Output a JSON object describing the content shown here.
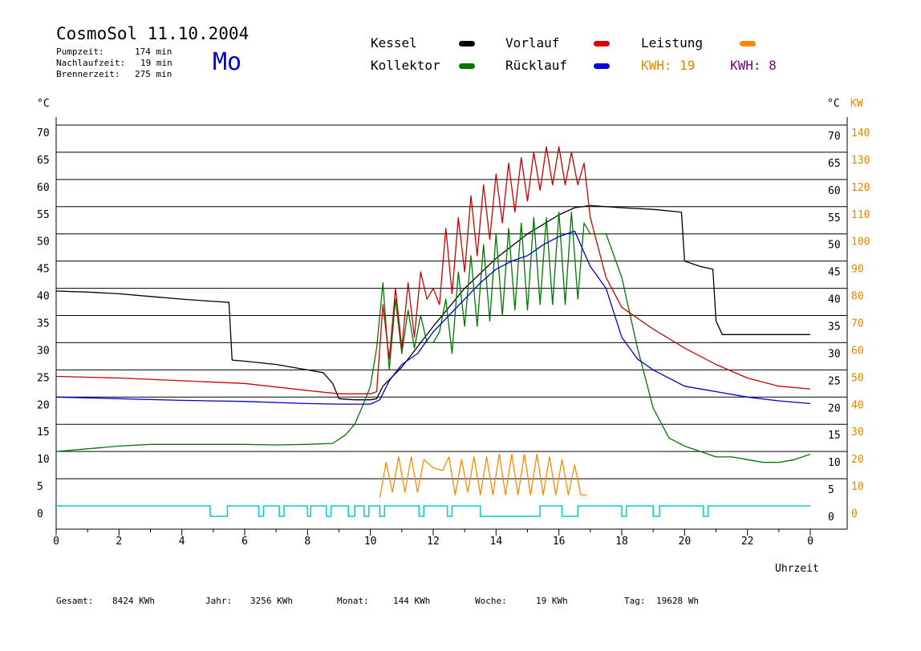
{
  "header": {
    "title": "CosmoSol 11.10.2004",
    "weekday": "Mo",
    "pumpzeit_label": "Pumpzeit:",
    "pumpzeit_value": "174 min",
    "nachlaufzeit_label": "Nachlaufzeit:",
    "nachlaufzeit_value": "19 min",
    "brennerzeit_label": "Brennerzeit:",
    "brennerzeit_value": "275 min"
  },
  "legend": {
    "kessel": "Kessel",
    "kollektor": "Kollektor",
    "vorlauf": "Vorlauf",
    "ruecklauf": "Rücklauf",
    "leistung": "Leistung",
    "kwh1": "KWH: 19",
    "kwh2": "KWH: 8"
  },
  "footer": {
    "gesamt_label": "Gesamt:",
    "gesamt_value": "8424 KWh",
    "jahr_label": "Jahr:",
    "jahr_value": "3256 KWh",
    "monat_label": "Monat:",
    "monat_value": "144 KWh",
    "woche_label": "Woche:",
    "woche_value": "19 KWh",
    "tag_label": "Tag:",
    "tag_value": "19628 Wh"
  },
  "colors": {
    "kessel": "#000000",
    "kollektor": "#007700",
    "vorlauf": "#cc0000",
    "ruecklauf": "#0000cc",
    "leistung": "#ff8800",
    "leistung_text": "#dd8800",
    "kwh2_text": "#800080",
    "pump": "#00cccc"
  },
  "chart_data": {
    "type": "line",
    "xlabel": "Uhrzeit",
    "ylabel_left": "°C",
    "ylabel_right_temp": "°C",
    "ylabel_right_power": "KW",
    "xlim": [
      0,
      24
    ],
    "ylim": [
      0,
      70
    ],
    "ylim_power": [
      0,
      140
    ],
    "x_ticks": [
      "0",
      "2",
      "4",
      "6",
      "8",
      "10",
      "12",
      "14",
      "16",
      "18",
      "20",
      "22",
      "0"
    ],
    "y_ticks": [
      0,
      5,
      10,
      15,
      20,
      25,
      30,
      35,
      40,
      45,
      50,
      55,
      60,
      65,
      70
    ],
    "y_ticks_power": [
      0,
      10,
      20,
      30,
      40,
      50,
      60,
      70,
      80,
      90,
      100,
      110,
      120,
      130,
      140
    ],
    "grid": true,
    "series": [
      {
        "name": "Kessel",
        "key": "kessel",
        "x": [
          0,
          1,
          2,
          3,
          4,
          5,
          5.5,
          5.6,
          6,
          7,
          7.5,
          8,
          8.5,
          8.8,
          9,
          9.5,
          10,
          10.2,
          10.4,
          11,
          12,
          13,
          14,
          15,
          16,
          16.5,
          17,
          18,
          19,
          19.9,
          20,
          20.5,
          20.9,
          21,
          21.2,
          22,
          23,
          24
        ],
        "y": [
          39.5,
          39.3,
          39,
          38.5,
          38,
          37.6,
          37.4,
          26.8,
          26.6,
          26,
          25.5,
          25,
          24.5,
          22.5,
          19.7,
          19.5,
          19.5,
          19.7,
          22,
          25.5,
          33,
          40,
          45.5,
          50,
          53.5,
          54.8,
          55.2,
          54.8,
          54.5,
          54,
          45,
          44,
          43.5,
          34,
          31.5,
          31.5,
          31.5,
          31.5
        ]
      },
      {
        "name": "Vorlauf",
        "key": "vorlauf",
        "x": [
          0,
          2,
          4,
          6,
          8,
          9,
          10,
          10.2,
          10.4,
          10.6,
          10.8,
          11,
          11.2,
          11.4,
          11.6,
          11.8,
          12,
          12.2,
          12.4,
          12.6,
          12.8,
          13,
          13.2,
          13.4,
          13.6,
          13.8,
          14,
          14.2,
          14.4,
          14.6,
          14.8,
          15,
          15.2,
          15.4,
          15.6,
          15.8,
          16,
          16.2,
          16.4,
          16.6,
          16.8,
          17,
          17.5,
          18,
          19,
          20,
          21,
          22,
          23,
          24
        ],
        "y": [
          23.8,
          23.5,
          23,
          22.5,
          21.2,
          20.6,
          20.6,
          21,
          37,
          27,
          40,
          29,
          41,
          31,
          43,
          38,
          40,
          37,
          51,
          39,
          53,
          43,
          57,
          46,
          59,
          49,
          61,
          52,
          63,
          54,
          64,
          56,
          65,
          58,
          66,
          59,
          66,
          59,
          65,
          59,
          63,
          53,
          42,
          36.5,
          32.5,
          29,
          26,
          23.5,
          22,
          21.5
        ]
      },
      {
        "name": "Rücklauf",
        "key": "ruecklauf",
        "x": [
          0,
          2,
          4,
          6,
          8,
          9,
          10,
          10.3,
          10.6,
          11,
          11.5,
          12,
          12.5,
          13,
          13.5,
          14,
          14.5,
          15,
          15.5,
          16,
          16.5,
          17,
          17.5,
          18,
          18.5,
          19,
          20,
          21,
          22,
          23,
          24
        ],
        "y": [
          20,
          19.7,
          19.4,
          19.2,
          18.8,
          18.7,
          18.7,
          19.5,
          23,
          26,
          28,
          32,
          35,
          38,
          41,
          43.5,
          45,
          46,
          48,
          49.5,
          50.5,
          44,
          40,
          31,
          27,
          25,
          22,
          21,
          20,
          19.3,
          18.8
        ]
      },
      {
        "name": "Kollektor",
        "key": "kollektor",
        "x": [
          0,
          1,
          2,
          3,
          4,
          5,
          6,
          7,
          8,
          8.8,
          9.2,
          9.5,
          9.8,
          10,
          10.2,
          10.4,
          10.6,
          10.8,
          11,
          11.2,
          11.4,
          11.6,
          11.8,
          12,
          12.2,
          12.4,
          12.6,
          12.8,
          13,
          13.2,
          13.4,
          13.6,
          13.8,
          14,
          14.2,
          14.4,
          14.6,
          14.8,
          15,
          15.2,
          15.4,
          15.6,
          15.8,
          16,
          16.2,
          16.4,
          16.6,
          16.8,
          17,
          17.5,
          18,
          18.5,
          19,
          19.5,
          20,
          20.5,
          21,
          21.5,
          22,
          22.5,
          23,
          23.5,
          24
        ],
        "y": [
          10,
          10.5,
          11,
          11.3,
          11.3,
          11.3,
          11.3,
          11.2,
          11.3,
          11.5,
          13,
          15,
          19,
          22,
          29,
          41,
          25,
          38,
          28,
          36,
          29,
          35,
          30,
          30,
          32,
          38,
          28,
          43,
          33,
          46,
          33,
          48,
          34,
          50,
          35,
          51,
          36,
          52,
          36,
          53,
          37,
          53,
          37,
          54,
          37,
          54,
          38,
          52,
          50,
          50,
          42,
          29,
          18,
          12.5,
          11,
          10,
          9,
          9,
          8.5,
          8,
          8,
          8.5,
          9.5
        ]
      },
      {
        "name": "Leistung",
        "key": "leistung",
        "x": [
          10.3,
          10.5,
          10.7,
          10.9,
          11.1,
          11.3,
          11.5,
          11.7,
          12,
          12.3,
          12.5,
          12.7,
          12.9,
          13.1,
          13.3,
          13.5,
          13.7,
          13.9,
          14.1,
          14.3,
          14.5,
          14.7,
          14.9,
          15.1,
          15.3,
          15.5,
          15.7,
          15.9,
          16.1,
          16.3,
          16.5,
          16.7,
          16.9
        ],
        "y_power": [
          3,
          16,
          5,
          18,
          5,
          18,
          5,
          17,
          14,
          13,
          18,
          4,
          17,
          5,
          18,
          4,
          18,
          4,
          19,
          4,
          19,
          4,
          19,
          4,
          19,
          4,
          18,
          4,
          17,
          4,
          15,
          4,
          4
        ]
      }
    ],
    "pump_intervals": [
      [
        4.9,
        5.45
      ],
      [
        6.45,
        6.6
      ],
      [
        7.1,
        7.25
      ],
      [
        8.0,
        8.1
      ],
      [
        8.6,
        8.75
      ],
      [
        9.3,
        9.5
      ],
      [
        9.8,
        9.95
      ],
      [
        10.3,
        10.45
      ],
      [
        11.55,
        11.7
      ],
      [
        12.45,
        12.6
      ],
      [
        13.5,
        15.4
      ],
      [
        16.1,
        16.6
      ],
      [
        18.0,
        18.15
      ],
      [
        19.0,
        19.2
      ],
      [
        20.6,
        20.75
      ]
    ]
  }
}
